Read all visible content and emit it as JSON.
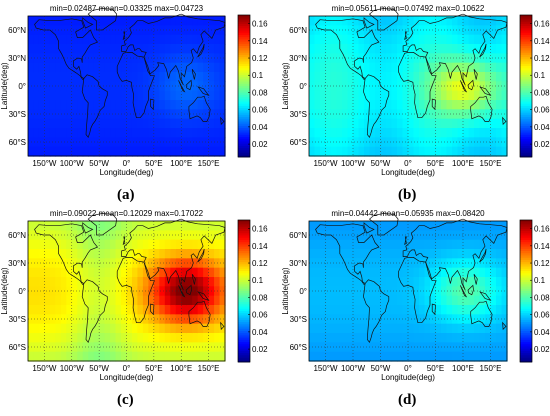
{
  "chart_data": [
    {
      "type": "heatmap",
      "panel": "(a)",
      "title": "min=0.02487      mean=0.03325      max=0.04723",
      "xlabel": "Longitude(deg)",
      "ylabel": "Latitude(deg)",
      "xlim": [
        -180,
        180
      ],
      "ylim": [
        -75,
        75
      ],
      "x_ticks": [
        "150°W",
        "100°W",
        "50°W",
        "0°",
        "50°E",
        "100°E",
        "150°E"
      ],
      "y_ticks": [
        "60°N",
        "30°N",
        "0°",
        "30°S",
        "60°S"
      ],
      "colorbar_ticks": [
        "0.16",
        "0.14",
        "0.12",
        "0.1",
        "0.08",
        "0.06",
        "0.04",
        "0.02"
      ],
      "clim": [
        0.005,
        0.17
      ],
      "stats": {
        "min": 0.02487,
        "mean": 0.03325,
        "max": 0.04723
      },
      "grid": true
    },
    {
      "type": "heatmap",
      "panel": "(b)",
      "title": "min=0.05611      mean=0.07492      max=0.10622",
      "xlabel": "Longitude(deg)",
      "ylabel": "Latitude(deg)",
      "xlim": [
        -180,
        180
      ],
      "ylim": [
        -75,
        75
      ],
      "x_ticks": [
        "150°W",
        "100°W",
        "50°W",
        "0°",
        "50°E",
        "100°E",
        "150°E"
      ],
      "y_ticks": [
        "60°N",
        "30°N",
        "0°",
        "30°S",
        "60°S"
      ],
      "colorbar_ticks": [
        "0.16",
        "0.14",
        "0.12",
        "0.1",
        "0.08",
        "0.06",
        "0.04",
        "0.02"
      ],
      "clim": [
        0.005,
        0.17
      ],
      "stats": {
        "min": 0.05611,
        "mean": 0.07492,
        "max": 0.10622
      },
      "grid": true
    },
    {
      "type": "heatmap",
      "panel": "(c)",
      "title": "min=0.09022      mean=0.12029      max=0.17022",
      "xlabel": "Longitude(deg)",
      "ylabel": "Latitude(deg)",
      "xlim": [
        -180,
        180
      ],
      "ylim": [
        -75,
        75
      ],
      "x_ticks": [
        "150°W",
        "100°W",
        "50°W",
        "0°",
        "50°E",
        "100°E",
        "150°E"
      ],
      "y_ticks": [
        "60°N",
        "30°N",
        "0°",
        "30°S",
        "60°S"
      ],
      "colorbar_ticks": [
        "0.16",
        "0.14",
        "0.12",
        "0.1",
        "0.08",
        "0.06",
        "0.04",
        "0.02"
      ],
      "clim": [
        0.005,
        0.17
      ],
      "stats": {
        "min": 0.09022,
        "mean": 0.12029,
        "max": 0.17022
      },
      "grid": true
    },
    {
      "type": "heatmap",
      "panel": "(d)",
      "title": "min=0.04442      mean=0.05935      max=0.08420",
      "xlabel": "Longitude(deg)",
      "ylabel": "Latitude(deg)",
      "xlim": [
        -180,
        180
      ],
      "ylim": [
        -75,
        75
      ],
      "x_ticks": [
        "150°W",
        "100°W",
        "50°W",
        "0°",
        "50°E",
        "100°E",
        "150°E"
      ],
      "y_ticks": [
        "60°N",
        "30°N",
        "0°",
        "30°S",
        "60°S"
      ],
      "colorbar_ticks": [
        "0.16",
        "0.14",
        "0.12",
        "0.1",
        "0.08",
        "0.06",
        "0.04",
        "0.02"
      ],
      "clim": [
        0.005,
        0.17
      ],
      "stats": {
        "min": 0.04442,
        "mean": 0.05935,
        "max": 0.0842
      },
      "grid": true
    }
  ]
}
